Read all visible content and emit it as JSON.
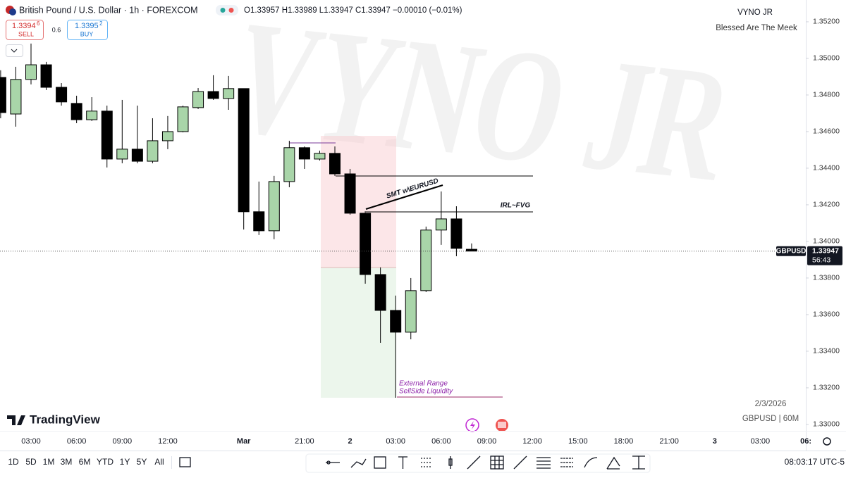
{
  "chart_data": {
    "type": "candlestick",
    "categories": [
      null,
      null,
      "03:00",
      null,
      null,
      "06:00",
      null,
      null,
      "09:00",
      null,
      null,
      "12:00",
      null,
      null,
      null,
      null,
      "Mar",
      null,
      null,
      null,
      "21:00",
      null,
      null,
      "2",
      null,
      null,
      "03:00",
      null,
      null,
      "06:00",
      null,
      null,
      "09:00",
      null,
      null,
      "12:00",
      null,
      null,
      "15:00",
      null,
      null,
      "18:00",
      null,
      null,
      "21:00",
      null,
      null,
      "3",
      null,
      null,
      "03:00",
      null,
      null,
      "06:"
    ],
    "open": [
      1.34896,
      1.34696,
      1.34885,
      1.34965,
      1.34842,
      1.34754,
      1.34665,
      1.34712,
      1.3445,
      1.34504,
      1.34438,
      1.3455,
      1.346,
      1.34731,
      1.34819,
      1.34781,
      1.34835,
      1.34162,
      1.34058,
      1.34327,
      1.34512,
      1.3445,
      1.34481,
      1.34369,
      1.34154,
      1.33819,
      1.33623,
      1.33504,
      1.33731,
      1.34062,
      1.34123,
      1.33957,
      null,
      null,
      null,
      null,
      null,
      null,
      null,
      null,
      null,
      null,
      null,
      null,
      null,
      null,
      null,
      null,
      null,
      null,
      null,
      null,
      null,
      null
    ],
    "high": [
      1.34935,
      1.34954,
      1.35081,
      1.34981,
      1.34865,
      1.34796,
      1.34788,
      1.34742,
      1.34773,
      1.34742,
      1.34673,
      1.34685,
      1.34742,
      1.34838,
      1.34908,
      1.34904,
      1.34835,
      1.34327,
      1.34358,
      1.3455,
      1.34519,
      1.34496,
      1.34519,
      1.34396,
      1.34165,
      1.33858,
      1.33704,
      1.338,
      1.34081,
      1.34273,
      1.34192,
      1.33989,
      null,
      null,
      null,
      null,
      null,
      null,
      null,
      null,
      null,
      null,
      null,
      null,
      null,
      null,
      null,
      null,
      null,
      null,
      null,
      null,
      null,
      null
    ],
    "low": [
      1.34673,
      1.34627,
      1.34858,
      1.34827,
      1.34742,
      1.34646,
      1.34658,
      1.34404,
      1.34427,
      1.34427,
      1.34427,
      1.34504,
      1.34596,
      1.34723,
      1.34773,
      1.34719,
      1.34065,
      1.34035,
      1.34012,
      1.34296,
      1.34396,
      1.34442,
      1.34358,
      1.34146,
      1.33769,
      1.33446,
      1.33146,
      1.33465,
      1.33723,
      1.33981,
      1.33919,
      1.33947,
      null,
      null,
      null,
      null,
      null,
      null,
      null,
      null,
      null,
      null,
      null,
      null,
      null,
      null,
      null,
      null,
      null,
      null,
      null,
      null,
      null,
      null
    ],
    "close": [
      1.34704,
      1.34885,
      1.34965,
      1.34842,
      1.34762,
      1.34665,
      1.34712,
      1.3445,
      1.34504,
      1.34438,
      1.3455,
      1.346,
      1.34735,
      1.34819,
      1.34781,
      1.34835,
      1.34162,
      1.34058,
      1.34327,
      1.34512,
      1.3445,
      1.34481,
      1.34369,
      1.34154,
      1.33819,
      1.33623,
      1.33504,
      1.33731,
      1.34062,
      1.34123,
      1.33962,
      1.33947,
      null,
      null,
      null,
      null,
      null,
      null,
      null,
      null,
      null,
      null,
      null,
      null,
      null,
      null,
      null,
      null,
      null,
      null,
      null,
      null,
      null,
      null
    ],
    "up_color": "#a9d5a9",
    "down_color": "#000000",
    "ylim": [
      1.32965,
      1.35319
    ],
    "yticks": [
      {
        "value": 1.352,
        "label": "1.35200"
      },
      {
        "value": 1.35,
        "label": "1.35000"
      },
      {
        "value": 1.348,
        "label": "1.34800"
      },
      {
        "value": 1.346,
        "label": "1.34600"
      },
      {
        "value": 1.344,
        "label": "1.34400"
      },
      {
        "value": 1.342,
        "label": "1.34200"
      },
      {
        "value": 1.34,
        "label": "1.34000"
      },
      {
        "value": 1.338,
        "label": "1.33800"
      },
      {
        "value": 1.336,
        "label": "1.33600"
      },
      {
        "value": 1.334,
        "label": "1.33400"
      },
      {
        "value": 1.332,
        "label": "1.33200"
      },
      {
        "value": 1.33,
        "label": "1.33000"
      }
    ],
    "last_price": 1.33947,
    "last_symbol": "GBPUSD",
    "countdown": "56:43",
    "annotations": [
      "SMT w\\EURUSD",
      "IRL~FVG",
      "External Range",
      "SellSide Liquidity"
    ]
  },
  "ui": {
    "symbol": "British Pound / U.S. Dollar · 1h · FOREXCOM",
    "ohlc": "O1.33957 H1.33989 L1.33947 C1.33947 −0.00010 (−0.01%)",
    "sell_price": "1.3394",
    "sell_pip": "6",
    "sell": "SELL",
    "spread": "0.6",
    "buy_price": "1.3395",
    "buy_pip": "2",
    "buy": "BUY",
    "author": "VYNO JR",
    "motto": "Blessed Are The Meek",
    "watermark": "VYNO JR",
    "date": "2/3/2026",
    "symbol_info": "GBPUSD | 60M",
    "logo": "TradingView",
    "ranges": [
      "1D",
      "5D",
      "1M",
      "3M",
      "6M",
      "YTD",
      "1Y",
      "5Y",
      "All"
    ],
    "clock": "08:03:17 UTC-5"
  }
}
